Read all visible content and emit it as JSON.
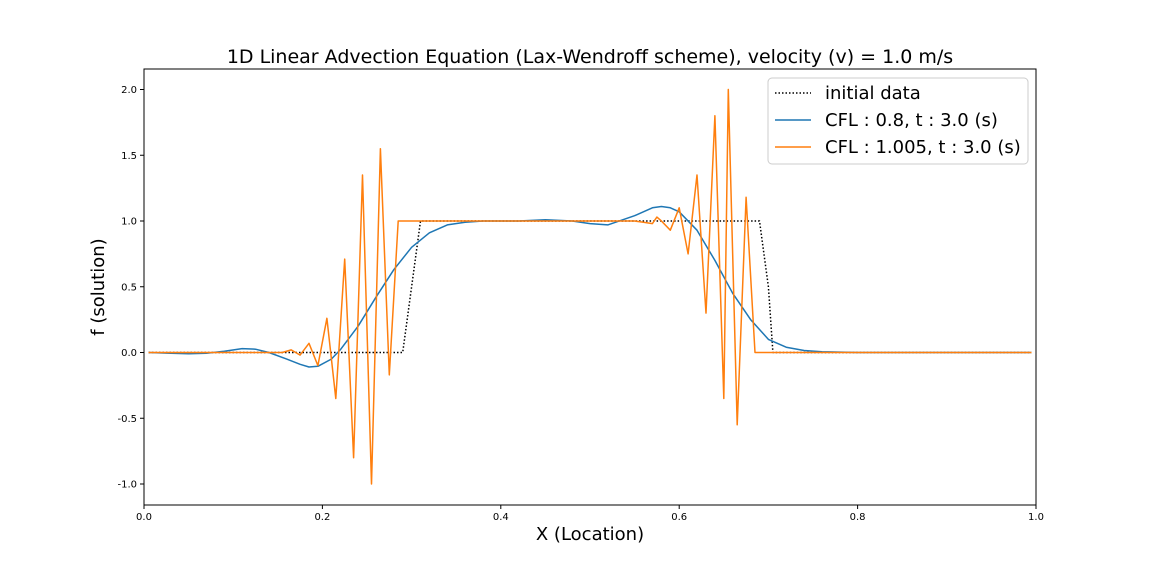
{
  "chart_data": {
    "type": "line",
    "title": "1D Linear Advection Equation (Lax-Wendroff scheme), velocity (v) = 1.0 m/s",
    "xlabel": "X (Location)",
    "ylabel": "f (solution)",
    "xlim": [
      0.0,
      1.0
    ],
    "ylim": [
      -1.15,
      2.15
    ],
    "xticks": [
      "0.0",
      "0.2",
      "0.4",
      "0.6",
      "0.8",
      "1.0"
    ],
    "yticks": [
      "-1.0",
      "-0.5",
      "0.0",
      "0.5",
      "1.0",
      "1.5",
      "2.0"
    ],
    "grid": false,
    "legend_position": "top-right",
    "series": [
      {
        "name": "initial data",
        "color": "#000000",
        "style": "dotted",
        "x": [
          0.005,
          0.29,
          0.3,
          0.31,
          0.69,
          0.7,
          0.705,
          0.995
        ],
        "y": [
          0.0,
          0.0,
          0.5,
          1.0,
          1.0,
          0.5,
          0.0,
          0.0
        ]
      },
      {
        "name": "CFL : 0.8, t : 3.0 (s)",
        "color": "#1f77b4",
        "style": "solid",
        "x": [
          0.005,
          0.03,
          0.05,
          0.07,
          0.09,
          0.11,
          0.125,
          0.14,
          0.16,
          0.175,
          0.185,
          0.195,
          0.21,
          0.22,
          0.24,
          0.26,
          0.28,
          0.3,
          0.32,
          0.34,
          0.36,
          0.38,
          0.4,
          0.42,
          0.45,
          0.48,
          0.5,
          0.52,
          0.55,
          0.57,
          0.58,
          0.59,
          0.6,
          0.62,
          0.64,
          0.66,
          0.68,
          0.7,
          0.72,
          0.74,
          0.76,
          0.8,
          0.85,
          0.9,
          0.95,
          0.995
        ],
        "y": [
          0.0,
          -0.005,
          -0.01,
          -0.005,
          0.01,
          0.03,
          0.025,
          0.0,
          -0.05,
          -0.09,
          -0.11,
          -0.105,
          -0.05,
          0.02,
          0.2,
          0.42,
          0.63,
          0.8,
          0.91,
          0.97,
          0.99,
          1.0,
          1.0,
          1.0,
          1.01,
          1.0,
          0.98,
          0.97,
          1.04,
          1.1,
          1.11,
          1.1,
          1.07,
          0.93,
          0.7,
          0.45,
          0.25,
          0.1,
          0.04,
          0.015,
          0.005,
          0.0,
          0.0,
          0.0,
          0.0,
          0.0
        ]
      },
      {
        "name": "CFL : 1.005, t : 3.0 (s)",
        "color": "#ff7f0e",
        "style": "solid",
        "x": [
          0.005,
          0.155,
          0.165,
          0.175,
          0.185,
          0.195,
          0.205,
          0.215,
          0.225,
          0.235,
          0.245,
          0.255,
          0.265,
          0.275,
          0.285,
          0.55,
          0.56,
          0.57,
          0.575,
          0.58,
          0.59,
          0.6,
          0.61,
          0.62,
          0.63,
          0.64,
          0.65,
          0.655,
          0.665,
          0.675,
          0.685,
          0.695,
          0.705,
          0.8,
          0.995
        ],
        "y": [
          0.0,
          0.0,
          0.02,
          -0.02,
          0.07,
          -0.1,
          0.26,
          -0.35,
          0.71,
          -0.8,
          1.35,
          -1.0,
          1.55,
          -0.17,
          1.0,
          1.0,
          0.99,
          0.98,
          1.03,
          1.0,
          0.93,
          1.1,
          0.75,
          1.35,
          0.3,
          1.8,
          -0.35,
          2.0,
          -0.55,
          1.18,
          0.0,
          0.0,
          0.0,
          0.0,
          0.0
        ]
      }
    ]
  }
}
